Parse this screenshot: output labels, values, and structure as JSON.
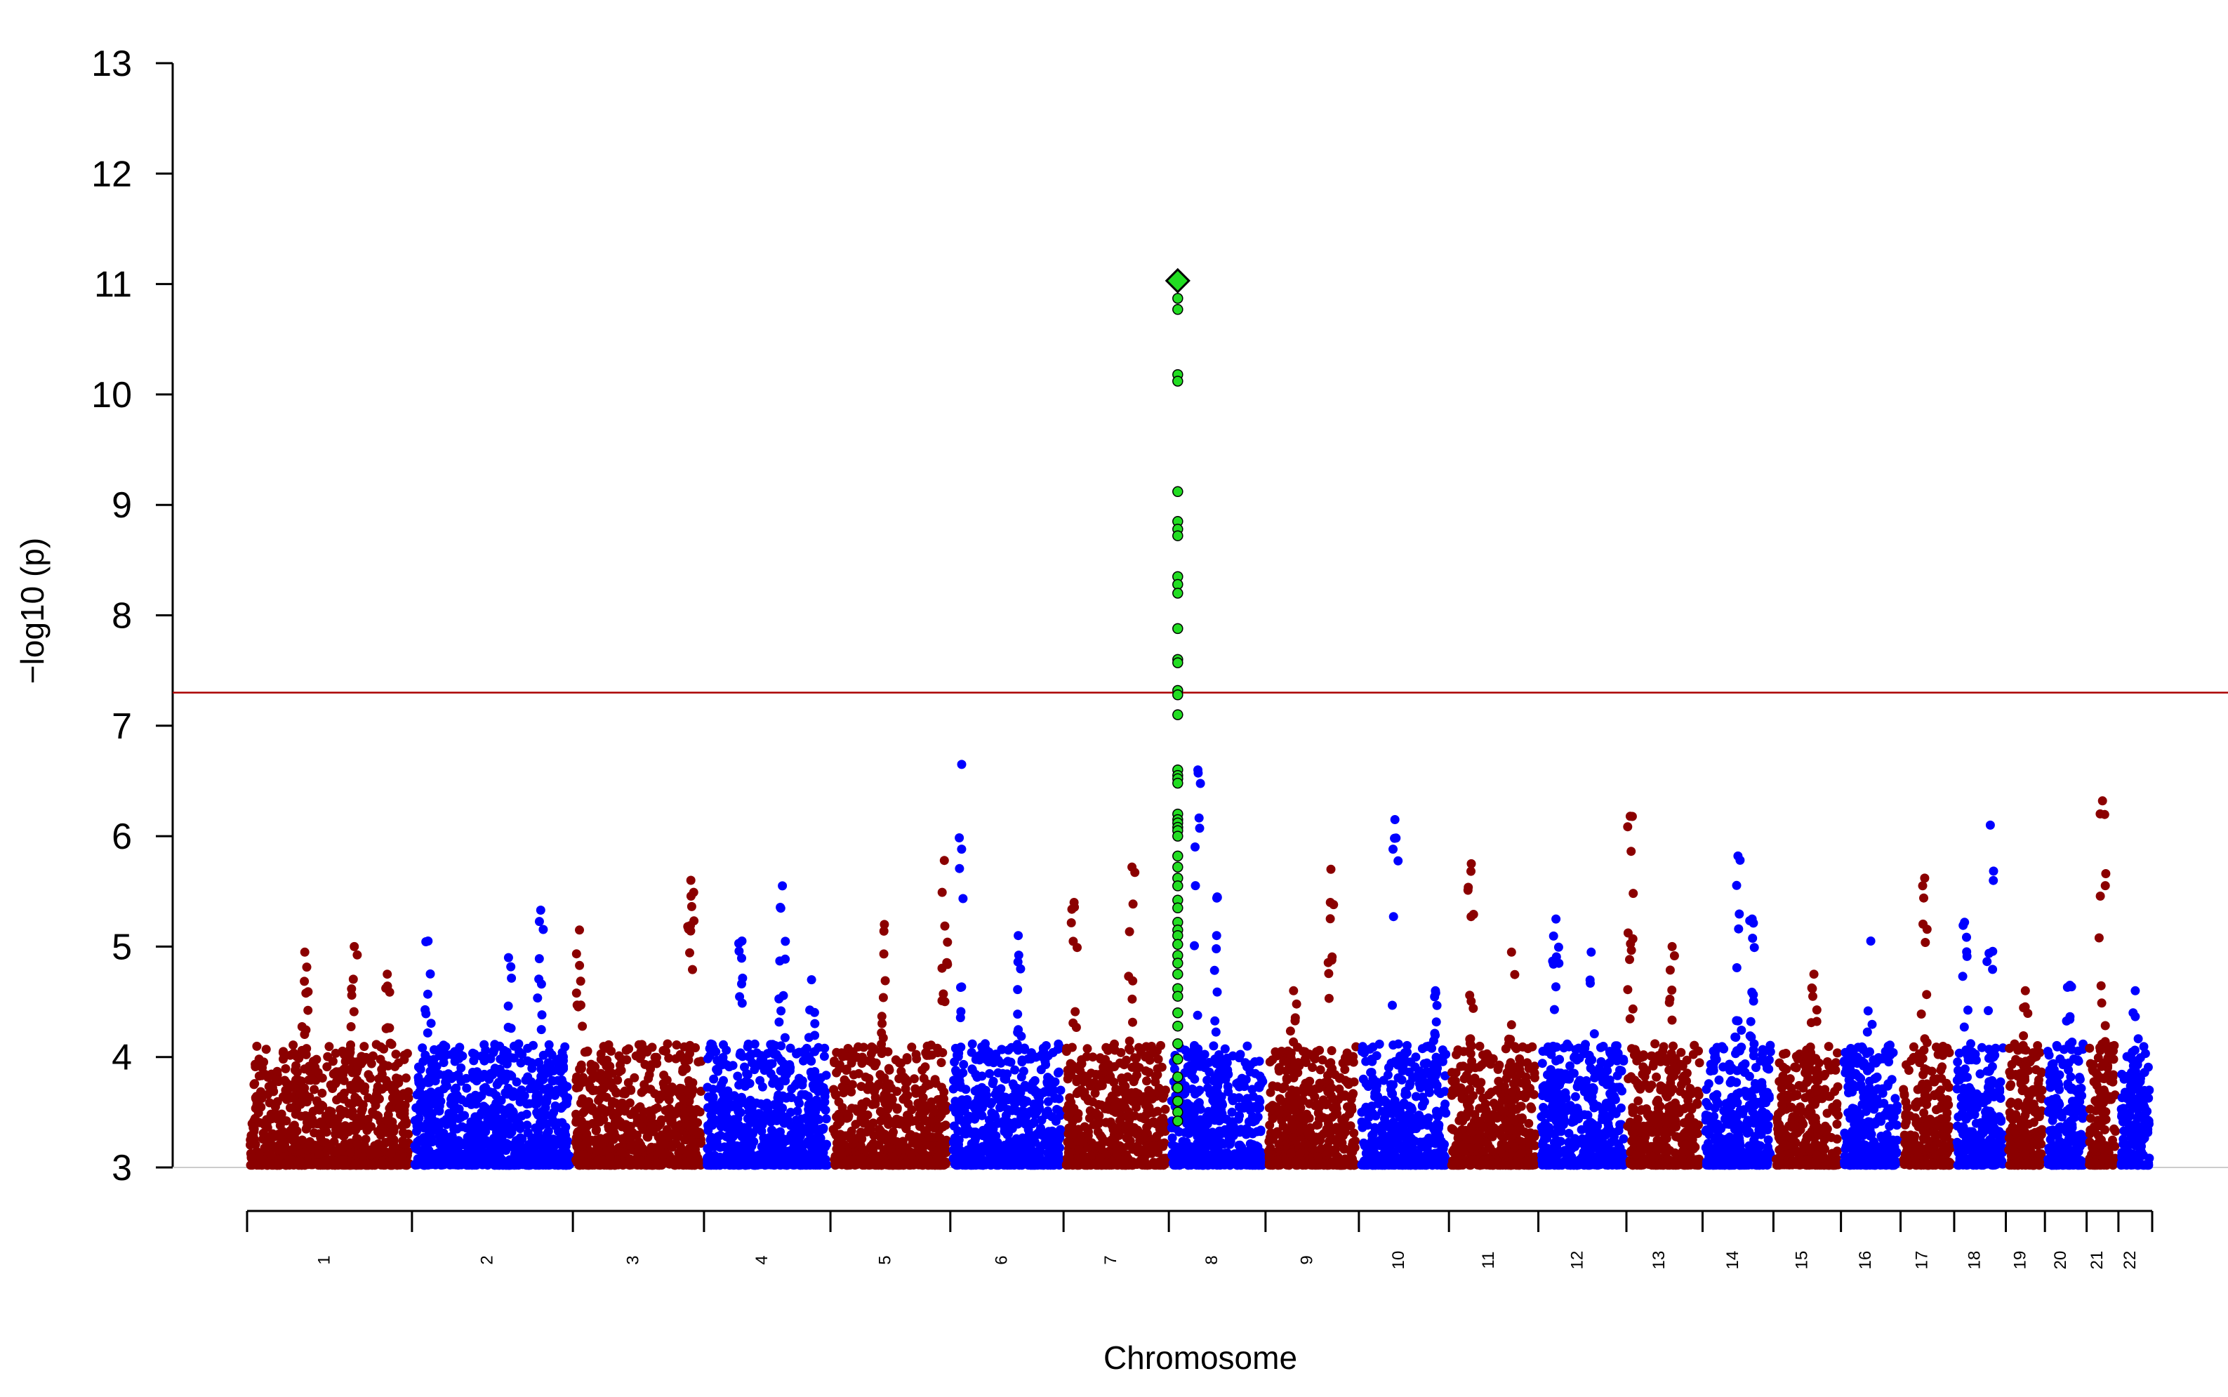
{
  "chart_data": {
    "type": "scatter",
    "subtype": "manhattan",
    "xlabel": "Chromosome",
    "ylabel": "−log10 (p)",
    "ylim": [
      3,
      13
    ],
    "yticks": [
      "3",
      "4",
      "5",
      "6",
      "7",
      "8",
      "9",
      "10",
      "11",
      "12",
      "13"
    ],
    "significance_line": 7.3,
    "colors": {
      "odd_chromosomes": "#8B0000",
      "even_chromosomes": "#0000FF",
      "highlight": "#22DD22",
      "significance_line": "#AA0000"
    },
    "chromosomes": [
      {
        "label": "1",
        "len": 249,
        "peaks": [
          [
            0.35,
            4.95
          ],
          [
            0.65,
            5.0
          ],
          [
            0.85,
            4.75
          ]
        ]
      },
      {
        "label": "2",
        "len": 243,
        "peaks": [
          [
            0.1,
            5.05
          ],
          [
            0.6,
            4.9
          ],
          [
            0.8,
            5.33
          ]
        ]
      },
      {
        "label": "3",
        "len": 198,
        "peaks": [
          [
            0.05,
            5.15
          ],
          [
            0.9,
            5.6
          ]
        ]
      },
      {
        "label": "4",
        "len": 191,
        "peaks": [
          [
            0.3,
            5.05
          ],
          [
            0.62,
            5.55
          ],
          [
            0.85,
            4.7
          ]
        ]
      },
      {
        "label": "5",
        "len": 181,
        "peaks": [
          [
            0.45,
            5.2
          ],
          [
            0.95,
            5.78
          ]
        ]
      },
      {
        "label": "6",
        "len": 171,
        "peaks": [
          [
            0.1,
            6.65
          ],
          [
            0.6,
            5.1
          ]
        ]
      },
      {
        "label": "7",
        "len": 159,
        "peaks": [
          [
            0.1,
            5.4
          ],
          [
            0.65,
            5.72
          ]
        ]
      },
      {
        "label": "8",
        "len": 146,
        "peaks": [
          [
            0.3,
            6.6
          ],
          [
            0.5,
            5.45
          ]
        ]
      },
      {
        "label": "9",
        "len": 141,
        "peaks": [
          [
            0.3,
            4.6
          ],
          [
            0.7,
            5.7
          ]
        ]
      },
      {
        "label": "10",
        "len": 136,
        "peaks": [
          [
            0.4,
            6.15
          ],
          [
            0.85,
            4.6
          ]
        ]
      },
      {
        "label": "11",
        "len": 135,
        "peaks": [
          [
            0.25,
            5.75
          ],
          [
            0.7,
            4.95
          ]
        ]
      },
      {
        "label": "12",
        "len": 133,
        "peaks": [
          [
            0.2,
            5.25
          ],
          [
            0.6,
            4.95
          ]
        ]
      },
      {
        "label": "13",
        "len": 115,
        "peaks": [
          [
            0.05,
            6.18
          ],
          [
            0.6,
            5.0
          ]
        ]
      },
      {
        "label": "14",
        "len": 107,
        "peaks": [
          [
            0.5,
            5.82
          ],
          [
            0.7,
            5.25
          ]
        ]
      },
      {
        "label": "15",
        "len": 102,
        "peaks": [
          [
            0.6,
            4.75
          ]
        ]
      },
      {
        "label": "16",
        "len": 90,
        "peaks": [
          [
            0.5,
            5.05
          ]
        ]
      },
      {
        "label": "17",
        "len": 81,
        "peaks": [
          [
            0.45,
            5.62
          ]
        ]
      },
      {
        "label": "18",
        "len": 78,
        "peaks": [
          [
            0.2,
            5.22
          ],
          [
            0.7,
            6.1
          ]
        ]
      },
      {
        "label": "19",
        "len": 59,
        "peaks": [
          [
            0.5,
            4.6
          ]
        ]
      },
      {
        "label": "20",
        "len": 63,
        "peaks": [
          [
            0.6,
            4.65
          ]
        ]
      },
      {
        "label": "21",
        "len": 48,
        "peaks": [
          [
            0.5,
            6.32
          ]
        ]
      },
      {
        "label": "22",
        "len": 51,
        "peaks": [
          [
            0.5,
            4.6
          ]
        ]
      }
    ],
    "highlight_locus": {
      "chromosome": "8",
      "lead_snp_log10p": 11.03,
      "points_log10p": [
        10.87,
        10.77,
        10.18,
        10.12,
        9.12,
        8.85,
        8.78,
        8.72,
        8.35,
        8.28,
        8.2,
        7.88,
        7.6,
        7.57,
        7.32,
        7.28,
        7.1,
        6.6,
        6.55,
        6.52,
        6.48,
        6.2,
        6.15,
        6.12,
        6.08,
        6.05,
        6.0,
        5.82,
        5.72,
        5.62,
        5.55,
        5.42,
        5.35,
        5.22,
        5.15,
        5.1,
        5.02,
        4.92,
        4.85,
        4.75,
        4.62,
        4.55,
        4.4,
        4.28,
        4.12,
        3.98,
        3.82,
        3.72,
        3.6,
        3.5,
        3.42
      ]
    }
  }
}
